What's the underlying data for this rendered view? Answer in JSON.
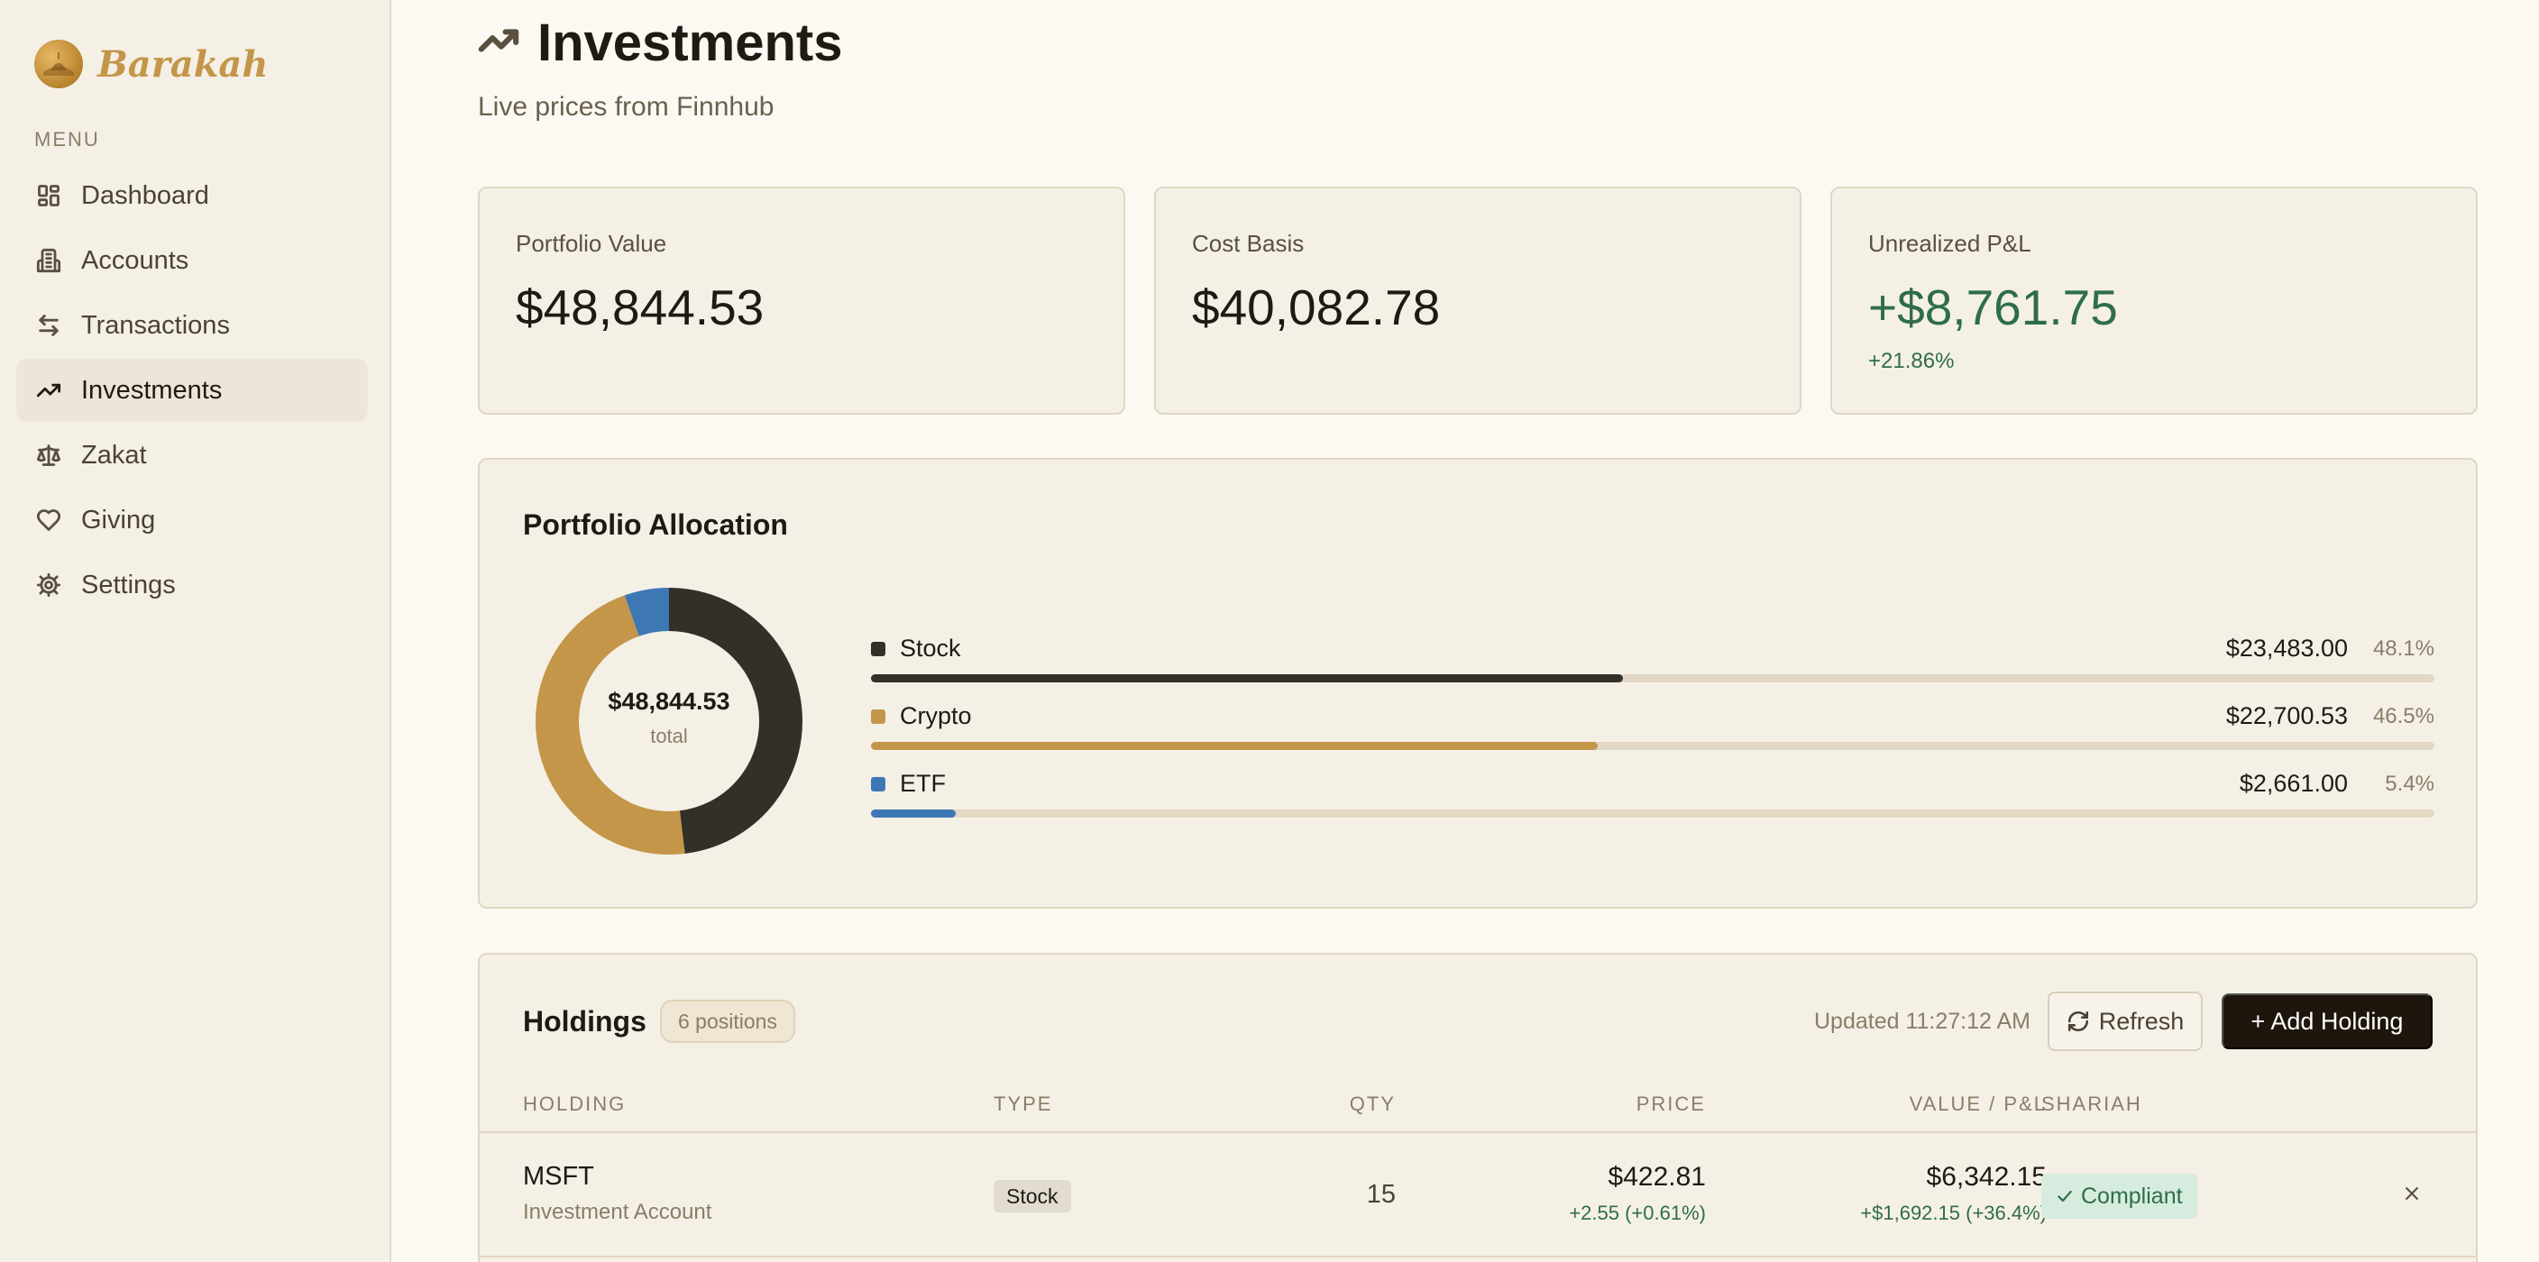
{
  "brand": {
    "name": "Barakah",
    "logo_icon": "mosque-logo-icon"
  },
  "sidebar": {
    "menu_label": "MENU",
    "items": [
      {
        "label": "Dashboard",
        "icon": "dashboard-icon",
        "active": false
      },
      {
        "label": "Accounts",
        "icon": "bank-icon",
        "active": false
      },
      {
        "label": "Transactions",
        "icon": "arrows-exchange-icon",
        "active": false
      },
      {
        "label": "Investments",
        "icon": "trending-up-icon",
        "active": true
      },
      {
        "label": "Zakat",
        "icon": "scale-icon",
        "active": false
      },
      {
        "label": "Giving",
        "icon": "heart-icon",
        "active": false
      },
      {
        "label": "Settings",
        "icon": "gear-icon",
        "active": false
      }
    ]
  },
  "header": {
    "title": "Investments",
    "subtitle": "Live prices from Finnhub",
    "icon": "trending-up-icon"
  },
  "stats": {
    "portfolio_value": {
      "label": "Portfolio Value",
      "value": "$48,844.53"
    },
    "cost_basis": {
      "label": "Cost Basis",
      "value": "$40,082.78"
    },
    "unrealized": {
      "label": "Unrealized P&L",
      "value": "+$8,761.75",
      "sub": "+21.86%"
    }
  },
  "allocation": {
    "title": "Portfolio Allocation",
    "total": "$48,844.53",
    "total_caption": "total",
    "items": [
      {
        "name": "Stock",
        "amount": "$23,483.00",
        "pct": "48.1%",
        "fraction": 0.481,
        "color": "#33302a"
      },
      {
        "name": "Crypto",
        "amount": "$22,700.53",
        "pct": "46.5%",
        "fraction": 0.465,
        "color": "#c4964a"
      },
      {
        "name": "ETF",
        "amount": "$2,661.00",
        "pct": "5.4%",
        "fraction": 0.054,
        "color": "#3d78b5"
      }
    ],
    "track_color": "#e2d8c4"
  },
  "holdings": {
    "title": "Holdings",
    "positions_badge": "6 positions",
    "updated": "Updated 11:27:12 AM",
    "refresh_label": "Refresh",
    "add_label": "+ Add Holding",
    "columns": [
      "HOLDING",
      "TYPE",
      "QTY",
      "PRICE",
      "VALUE / P&L",
      "SHARIAH"
    ],
    "rows": [
      {
        "symbol": "MSFT",
        "account": "Investment Account",
        "type": "Stock",
        "qty": "15",
        "price": "$422.81",
        "price_change": "+2.55 (+0.61%)",
        "value": "$6,342.15",
        "value_change": "+$1,692.15 (+36.4%)",
        "shariah": "Compliant"
      }
    ]
  },
  "colors": {
    "accent": "#c4964a",
    "positive": "#2e6e47",
    "dark": "#1e150c"
  }
}
